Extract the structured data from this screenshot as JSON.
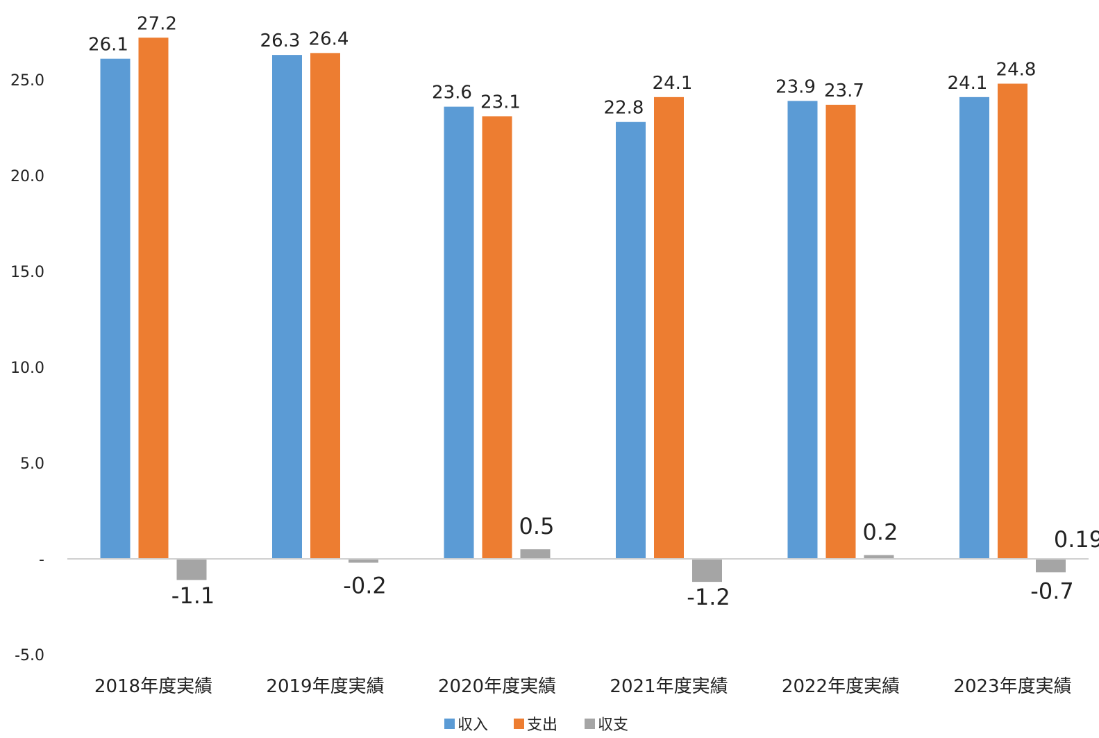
{
  "chart_data": {
    "type": "bar",
    "title": "",
    "xlabel": "",
    "ylabel": "",
    "ylim": [
      -5,
      27.5
    ],
    "yticks": [
      -5,
      0,
      5,
      10,
      15,
      20,
      25
    ],
    "ytick_labels": [
      "-5.0",
      "-",
      "5.0",
      "10.0",
      "15.0",
      "20.0",
      "25.0"
    ],
    "categories": [
      "2018年度実績",
      "2019年度実績",
      "2020年度実績",
      "2021年度実績",
      "2022年度実績",
      "2023年度実績"
    ],
    "series": [
      {
        "name": "収入",
        "color": "#5B9BD5",
        "values": [
          26.1,
          26.3,
          23.6,
          22.8,
          23.9,
          24.1
        ],
        "labels": [
          "26.1",
          "26.3",
          "23.6",
          "22.8",
          "23.9",
          "24.1"
        ]
      },
      {
        "name": "支出",
        "color": "#ED7D31",
        "values": [
          27.2,
          26.4,
          23.1,
          24.1,
          23.7,
          24.8
        ],
        "labels": [
          "27.2",
          "26.4",
          "23.1",
          "24.1",
          "23.7",
          "24.8"
        ]
      },
      {
        "name": "収支",
        "color": "#A5A5A5",
        "values": [
          -1.1,
          -0.2,
          0.5,
          -1.2,
          0.2,
          -0.7
        ],
        "labels": [
          "-1.1",
          "-0.2",
          "0.5",
          "-1.2",
          "0.2",
          "-0.7"
        ]
      }
    ],
    "extra_labels": [
      {
        "text": "0.19",
        "category_index": 5
      }
    ],
    "legend_position": "bottom",
    "grid": false
  }
}
